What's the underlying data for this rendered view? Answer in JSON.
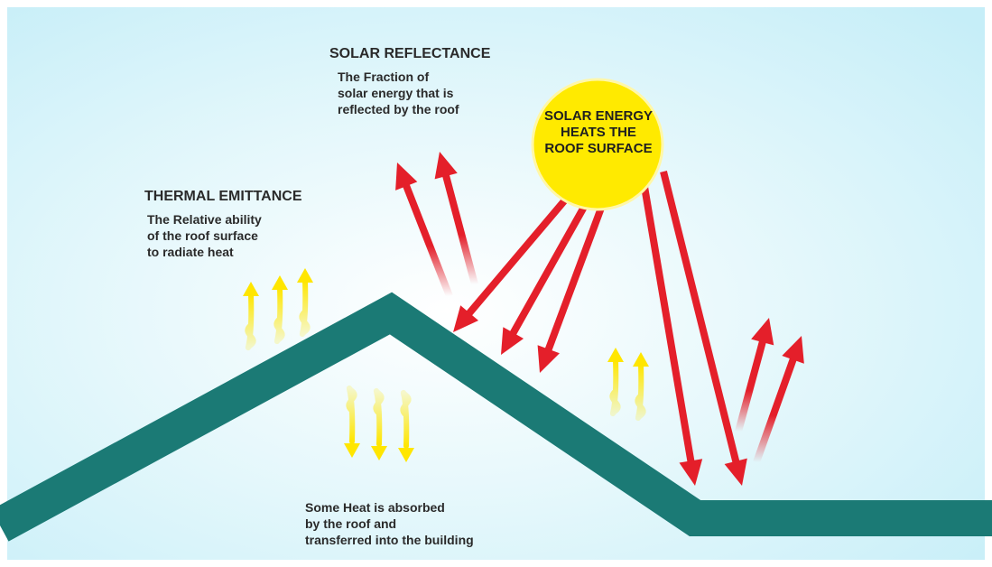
{
  "solar_reflectance": {
    "title": "SOLAR REFLECTANCE",
    "lines": [
      "The Fraction of",
      "solar energy that is",
      "reflected by the roof"
    ]
  },
  "thermal_emittance": {
    "title": "THERMAL EMITTANCE",
    "lines": [
      "The Relative ability",
      "of the roof surface",
      "to radiate heat"
    ]
  },
  "sun": {
    "lines": [
      "SOLAR ENERGY",
      "HEATS THE",
      "ROOF SURFACE"
    ]
  },
  "absorbed": {
    "lines": [
      "Some Heat is absorbed",
      "by the roof and",
      "transferred into the building"
    ]
  }
}
